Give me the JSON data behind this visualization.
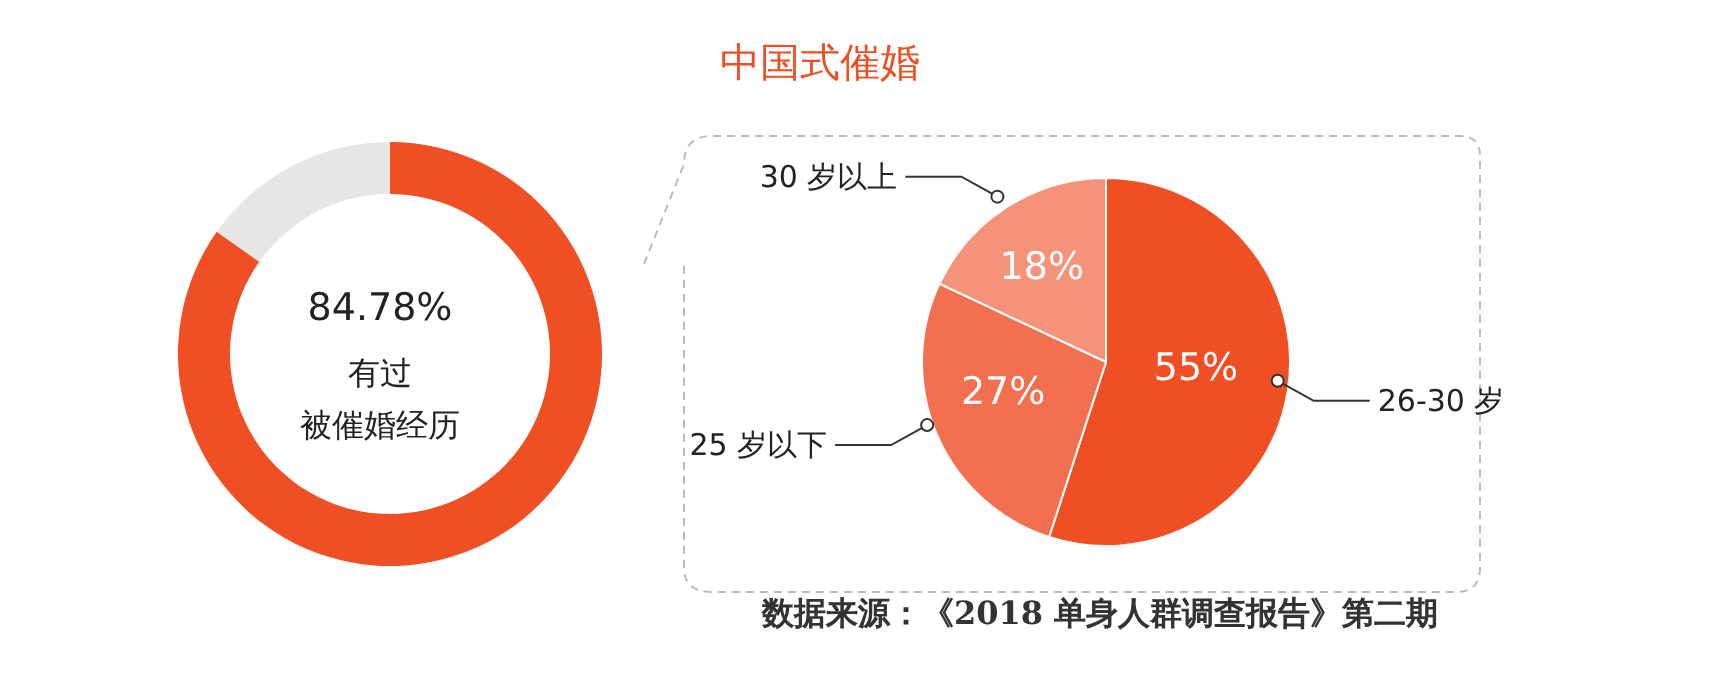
{
  "chart_data": [
    {
      "type": "donut",
      "categories": [
        null,
        null
      ],
      "values": [
        84.78,
        15.22
      ],
      "colors": [
        "#f04e23",
        "#e6e6e6"
      ],
      "annotations": [
        "84.78%",
        "有过",
        "被催婚经历"
      ]
    },
    {
      "type": "pie",
      "title": "中国式催婚",
      "categories": [
        "26-30 岁",
        "25 岁以下",
        "30 岁以上"
      ],
      "values": [
        55,
        27,
        18
      ],
      "colors": [
        "#f04e23",
        "#f27050",
        "#f4937a"
      ],
      "value_labels": [
        "55%",
        "27%",
        "18%"
      ],
      "annotations": [
        "数据来源：《2018 单身人群调查报告》第二期"
      ]
    }
  ]
}
